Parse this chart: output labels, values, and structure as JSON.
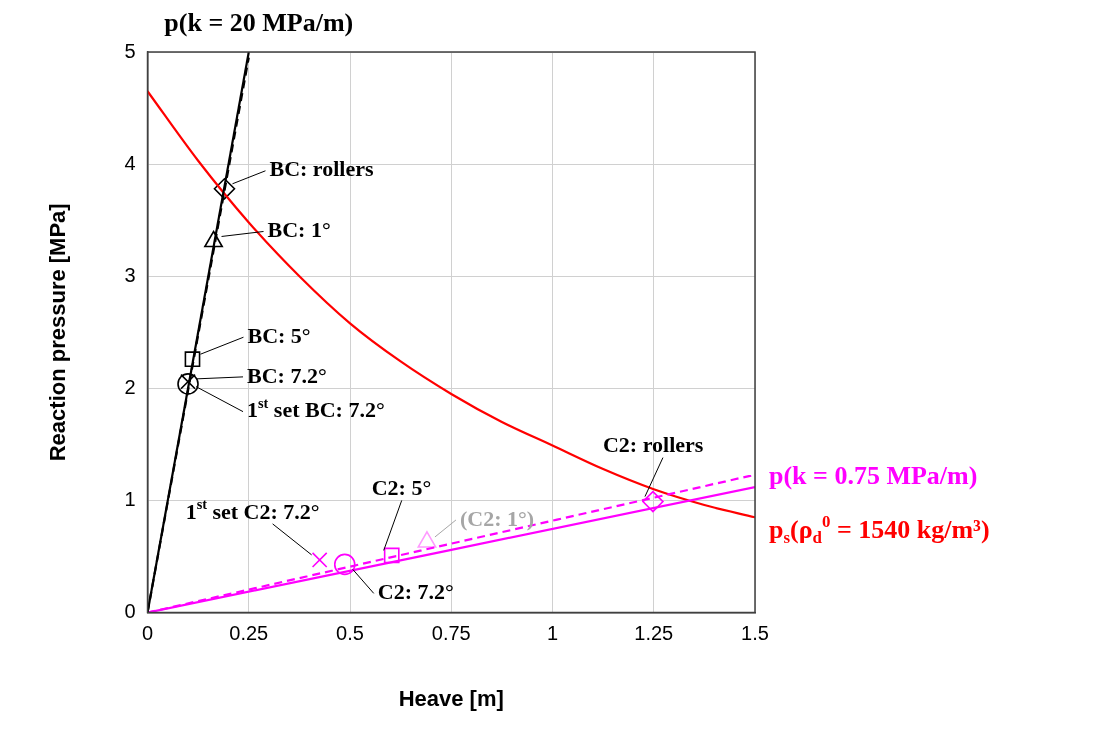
{
  "chart_data": {
    "type": "line",
    "xlabel": "Heave [m]",
    "ylabel": "Reaction pressure [MPa]",
    "xlim": [
      0,
      1.5
    ],
    "xticks": [
      0,
      0.25,
      0.5,
      0.75,
      1,
      1.25,
      1.5
    ],
    "ylim": [
      0,
      5
    ],
    "yticks": [
      0,
      1,
      2,
      3,
      4,
      5
    ],
    "grid": true,
    "legend": false,
    "series": [
      {
        "name": "p(k = 20 MPa/m)",
        "color": "#000000",
        "x": [
          0,
          0.25
        ],
        "values": [
          0,
          5
        ],
        "line_style": "solid",
        "marker": "none"
      },
      {
        "color": "#000000",
        "x": [
          0,
          0.25
        ],
        "values": [
          0,
          4.95
        ],
        "line_style": "dashed",
        "marker": "none"
      },
      {
        "name": "p(k = 0.75 MPa/m)",
        "color": "#ff00ff",
        "x": [
          0,
          1.5
        ],
        "values": [
          0,
          1.12
        ],
        "line_style": "solid",
        "marker": "none"
      },
      {
        "color": "#ff00ff",
        "x": [
          0,
          1.5
        ],
        "values": [
          0,
          1.23
        ],
        "line_style": "dashed",
        "marker": "none"
      },
      {
        "name": "p$_{s}$(ρ$_{d}$$^{0}$ = 1540 kg/m³)",
        "color": "#ff0000",
        "x": [
          0,
          0.125,
          0.25,
          0.375,
          0.5,
          0.625,
          0.75,
          0.875,
          1,
          1.125,
          1.25,
          1.375,
          1.5
        ],
        "values": [
          4.65,
          4.03,
          3.48,
          3.0,
          2.58,
          2.24,
          1.95,
          1.7,
          1.49,
          1.28,
          1.1,
          0.96,
          0.85
        ],
        "line_style": "solid",
        "marker": "none"
      },
      {
        "type": "scatter",
        "color": "#000000",
        "x": [
          0.19
        ],
        "values": [
          3.78
        ],
        "marker": "diamond"
      },
      {
        "type": "scatter",
        "color": "#000000",
        "x": [
          0.163
        ],
        "values": [
          3.31
        ],
        "marker": "triangle"
      },
      {
        "type": "scatter",
        "color": "#000000",
        "x": [
          0.111
        ],
        "values": [
          2.26
        ],
        "marker": "square"
      },
      {
        "type": "scatter",
        "color": "#000000",
        "x": [
          0.1
        ],
        "values": [
          2.04
        ],
        "marker": "circle"
      },
      {
        "type": "scatter",
        "color": "#000000",
        "x": [
          0.1
        ],
        "values": [
          2.06
        ],
        "marker": "cross"
      },
      {
        "type": "scatter",
        "color": "#ff00ff",
        "x": [
          1.248
        ],
        "values": [
          0.99
        ],
        "marker": "diamond"
      },
      {
        "type": "scatter",
        "color": "#ff99ff",
        "x": [
          0.69
        ],
        "values": [
          0.63
        ],
        "marker": "triangle"
      },
      {
        "type": "scatter",
        "color": "#ff00ff",
        "x": [
          0.603
        ],
        "values": [
          0.51
        ],
        "marker": "square"
      },
      {
        "type": "scatter",
        "color": "#ff00ff",
        "x": [
          0.487
        ],
        "values": [
          0.43
        ],
        "marker": "circle"
      },
      {
        "type": "scatter",
        "color": "#ff00ff",
        "x": [
          0.425
        ],
        "values": [
          0.47
        ],
        "marker": "cross"
      }
    ],
    "annotations": [
      {
        "text": "BC: rollers",
        "x": 0.19,
        "y": 3.78
      },
      {
        "text": "BC: 1°",
        "x": 0.163,
        "y": 3.31
      },
      {
        "text": "BC: 5°",
        "x": 0.111,
        "y": 2.26
      },
      {
        "text": "BC: 7.2°",
        "x": 0.1,
        "y": 2.04
      },
      {
        "text": "1$^{st}$ set BC: 7.2°",
        "x": 0.1,
        "y": 2.06
      },
      {
        "text": "C2: rollers",
        "x": 1.248,
        "y": 0.99
      },
      {
        "text": "(C2: 1°)",
        "x": 0.69,
        "y": 0.63
      },
      {
        "text": "C2: 5°",
        "x": 0.603,
        "y": 0.51
      },
      {
        "text": "C2: 7.2°",
        "x": 0.487,
        "y": 0.43
      },
      {
        "text": "1$^{st}$ set C2: 7.2°",
        "x": 0.425,
        "y": 0.47
      }
    ]
  }
}
